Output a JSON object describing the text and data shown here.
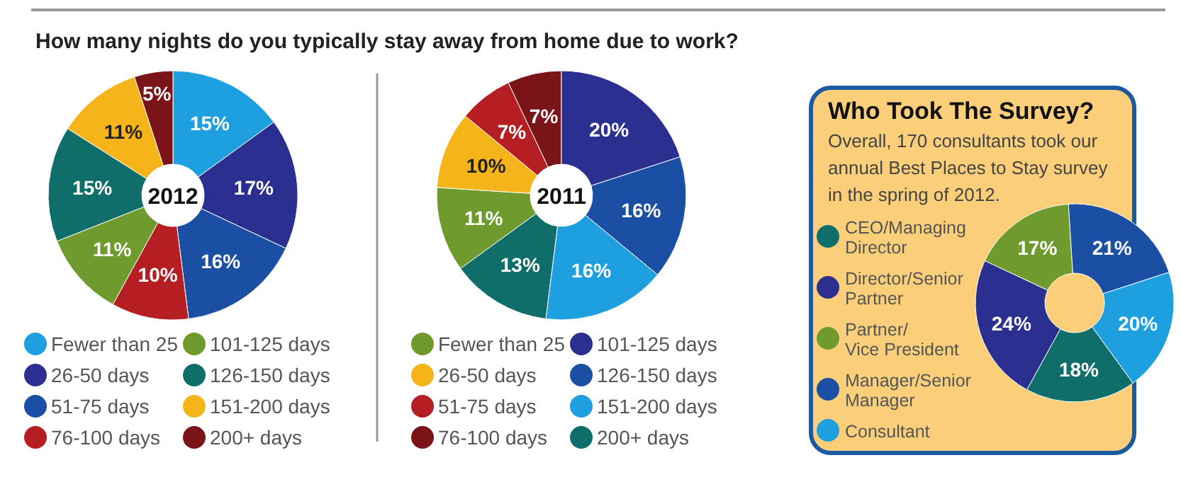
{
  "chart_data": [
    {
      "type": "donut",
      "title": "How many nights do you typically stay away from home due to work?",
      "annotations": [
        "2012"
      ],
      "categories": [
        "Fewer than 25",
        "26-50 days",
        "51-75 days",
        "76-100 days",
        "101-125 days",
        "126-150 days",
        "151-200 days",
        "200+ days"
      ],
      "values": [
        15,
        17,
        16,
        10,
        11,
        15,
        11,
        5
      ],
      "value_labels": [
        "15%",
        "17%",
        "16%",
        "10%",
        "11%",
        "15%",
        "11%",
        "5%"
      ],
      "colors": [
        "#1e9fe0",
        "#2b2f8f",
        "#1a4fa3",
        "#b51f24",
        "#6e9a2e",
        "#0f6e6a",
        "#f5b51a",
        "#7a1418"
      ],
      "legend": "bottom"
    },
    {
      "type": "donut",
      "annotations": [
        "2011"
      ],
      "categories": [
        "Fewer than 25",
        "26-50 days",
        "51-75 days",
        "76-100 days",
        "101-125 days",
        "126-150 days",
        "151-200 days",
        "200+ days"
      ],
      "values": [
        11,
        10,
        7,
        7,
        20,
        16,
        16,
        13
      ],
      "value_labels": [
        "11%",
        "10%",
        "7%",
        "7%",
        "20%",
        "16%",
        "16%",
        "13%"
      ],
      "colors": [
        "#6e9a2e",
        "#f5b51a",
        "#b51f24",
        "#7a1418",
        "#2b2f8f",
        "#1a4fa3",
        "#1e9fe0",
        "#0f6e6a"
      ],
      "legend": "bottom"
    },
    {
      "type": "donut",
      "title": "Who Took The Survey?",
      "subtitle": "Overall, 170 consultants took our annual Best Places to Stay survey in the spring of 2012.",
      "categories": [
        "CEO/Managing Director",
        "Director/Senior Partner",
        "Partner/ Vice President",
        "Manager/Senior Manager",
        "Consultant"
      ],
      "values": [
        18,
        24,
        17,
        21,
        20
      ],
      "value_labels": [
        "18%",
        "24%",
        "17%",
        "21%",
        "20%"
      ],
      "colors": [
        "#0f6e6a",
        "#2b2f8f",
        "#6e9a2e",
        "#1a4fa3",
        "#1e9fe0"
      ],
      "legend": "left"
    }
  ]
}
